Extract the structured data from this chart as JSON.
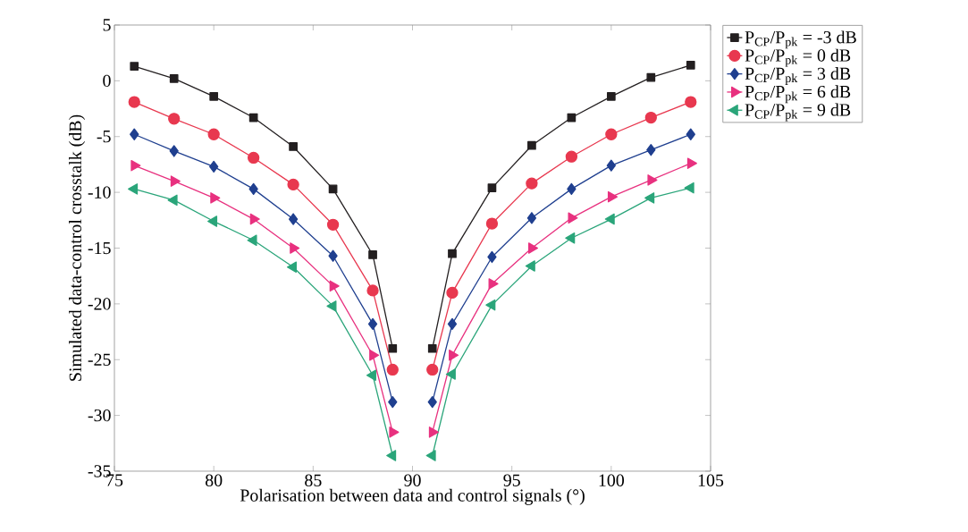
{
  "chart_data": {
    "type": "line",
    "xlabel": "Polarisation between data and control signals (°)",
    "ylabel": "Simulated data-control crosstalk (dB)",
    "x": [
      76,
      78,
      80,
      82,
      84,
      86,
      88,
      89,
      90,
      91,
      92,
      94,
      96,
      98,
      100,
      102,
      104
    ],
    "series": [
      {
        "name": "P$_{CP}$/P$_{pk}$ = -3 dB",
        "color": "#231f20",
        "marker": "square",
        "values": [
          1.3,
          0.2,
          -1.4,
          -3.3,
          -5.9,
          -9.7,
          -15.6,
          -24.0,
          null,
          -24.0,
          -15.5,
          -9.6,
          -5.8,
          -3.3,
          -1.4,
          0.3,
          1.4
        ]
      },
      {
        "name": "P$_{CP}$/P$_{pk}$ = 0 dB",
        "color": "#e8384f",
        "marker": "circle",
        "values": [
          -1.9,
          -3.4,
          -4.8,
          -6.9,
          -9.3,
          -12.9,
          -18.8,
          -25.9,
          null,
          -25.9,
          -19.0,
          -12.8,
          -9.2,
          -6.8,
          -4.8,
          -3.3,
          -1.9
        ]
      },
      {
        "name": "P$_{CP}$/P$_{pk}$ = 3 dB",
        "color": "#1f3f8f",
        "marker": "diamond",
        "values": [
          -4.8,
          -6.3,
          -7.7,
          -9.7,
          -12.4,
          -15.7,
          -21.8,
          -28.8,
          null,
          -28.8,
          -21.8,
          -15.8,
          -12.3,
          -9.7,
          -7.6,
          -6.2,
          -4.8
        ]
      },
      {
        "name": "P$_{CP}$/P$_{pk}$ = 6 dB",
        "color": "#e8317f",
        "marker": "triangle-right",
        "values": [
          -7.6,
          -9.0,
          -10.5,
          -12.4,
          -15.0,
          -18.4,
          -24.6,
          -31.5,
          null,
          -31.5,
          -24.6,
          -18.2,
          -15.0,
          -12.3,
          -10.4,
          -8.9,
          -7.4
        ]
      },
      {
        "name": "P$_{CP}$/P$_{pk}$ = 9 dB",
        "color": "#2aa57a",
        "marker": "triangle-left",
        "values": [
          -9.7,
          -10.7,
          -12.6,
          -14.3,
          -16.7,
          -20.2,
          -26.4,
          -33.6,
          null,
          -33.6,
          -26.3,
          -20.1,
          -16.6,
          -14.1,
          -12.4,
          -10.5,
          -9.6
        ]
      }
    ],
    "xlim": [
      75,
      105
    ],
    "ylim": [
      -35,
      5
    ],
    "xticks": [
      75,
      80,
      85,
      90,
      95,
      100,
      105
    ],
    "yticks": [
      -35,
      -30,
      -25,
      -20,
      -15,
      -10,
      -5,
      0,
      5
    ],
    "grid": false,
    "legend": "top right",
    "line_style": "solid"
  }
}
